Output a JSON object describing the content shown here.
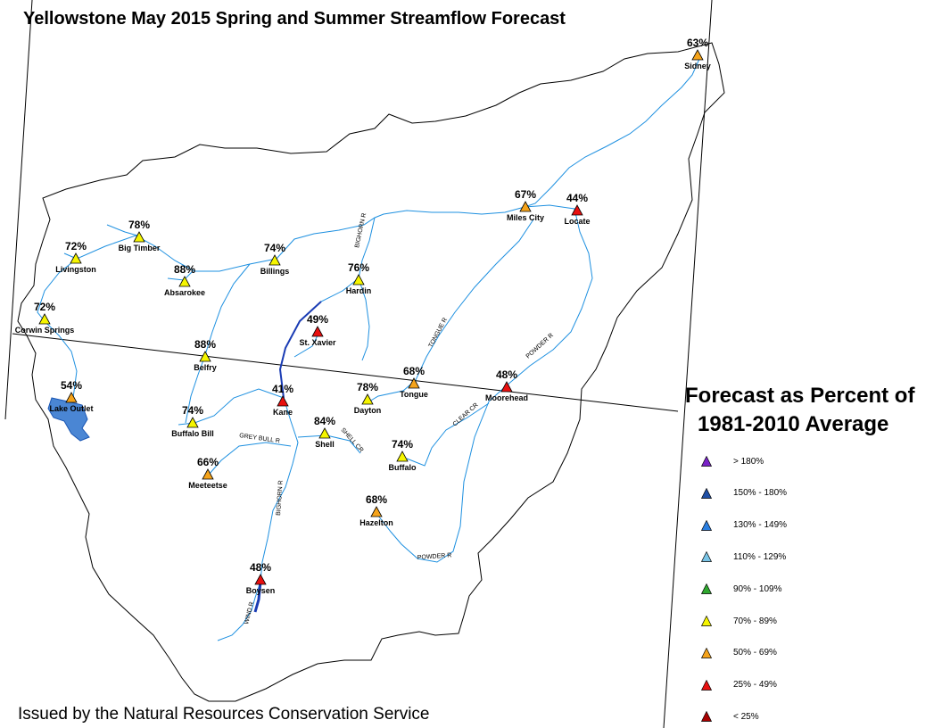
{
  "title": "Yellowstone May 2015 Spring and Summer Streamflow Forecast",
  "footer": "Issued by the Natural Resources Conservation Service",
  "legend": {
    "title_line1": "Forecast as Percent of",
    "title_line2": "1981-2010 Average",
    "items": [
      {
        "label": "> 180%",
        "color": "#7a22c8"
      },
      {
        "label": "150% - 180%",
        "color": "#1f4fa6"
      },
      {
        "label": "130% - 149%",
        "color": "#2a7ee0"
      },
      {
        "label": "110% - 129%",
        "color": "#79c4e6"
      },
      {
        "label": "90% - 109%",
        "color": "#2fa82f"
      },
      {
        "label": "70% - 89%",
        "color": "#f5f500"
      },
      {
        "label": "50% - 69%",
        "color": "#f5a31a"
      },
      {
        "label": "25% - 49%",
        "color": "#e81010"
      },
      {
        "label": "< 25%",
        "color": "#a80000"
      }
    ]
  },
  "rivers": [
    "BIGHORN R",
    "TONGUE R",
    "POWDER R",
    "CLEAR CR",
    "GREY BULL R",
    "SHELL CR",
    "BIGHORN R",
    "POWDER R",
    "WIND R"
  ],
  "stations": [
    {
      "name": "Sidney",
      "pct": "63%",
      "color": "#f5a31a"
    },
    {
      "name": "Miles City",
      "pct": "67%",
      "color": "#f5a31a"
    },
    {
      "name": "Locate",
      "pct": "44%",
      "color": "#e81010"
    },
    {
      "name": "Big Timber",
      "pct": "78%",
      "color": "#f5f500"
    },
    {
      "name": "Livingston",
      "pct": "72%",
      "color": "#f5f500"
    },
    {
      "name": "Billings",
      "pct": "74%",
      "color": "#f5f500"
    },
    {
      "name": "Absarokee",
      "pct": "88%",
      "color": "#f5f500"
    },
    {
      "name": "Hardin",
      "pct": "76%",
      "color": "#f5f500"
    },
    {
      "name": "Corwin Springs",
      "pct": "72%",
      "color": "#f5f500"
    },
    {
      "name": "St. Xavier",
      "pct": "49%",
      "color": "#e81010"
    },
    {
      "name": "Belfry",
      "pct": "88%",
      "color": "#f5f500"
    },
    {
      "name": "Tongue",
      "pct": "68%",
      "color": "#f5a31a"
    },
    {
      "name": "Moorehead",
      "pct": "48%",
      "color": "#e81010"
    },
    {
      "name": "Lake Outlet",
      "pct": "54%",
      "color": "#f5a31a"
    },
    {
      "name": "Kane",
      "pct": "41%",
      "color": "#e81010"
    },
    {
      "name": "Dayton",
      "pct": "78%",
      "color": "#f5f500"
    },
    {
      "name": "Buffalo Bill",
      "pct": "74%",
      "color": "#f5f500"
    },
    {
      "name": "Shell",
      "pct": "84%",
      "color": "#f5f500"
    },
    {
      "name": "Buffalo",
      "pct": "74%",
      "color": "#f5f500"
    },
    {
      "name": "Meeteetse",
      "pct": "66%",
      "color": "#f5a31a"
    },
    {
      "name": "Hazelton",
      "pct": "68%",
      "color": "#f5a31a"
    },
    {
      "name": "Boysen",
      "pct": "48%",
      "color": "#e81010"
    }
  ]
}
